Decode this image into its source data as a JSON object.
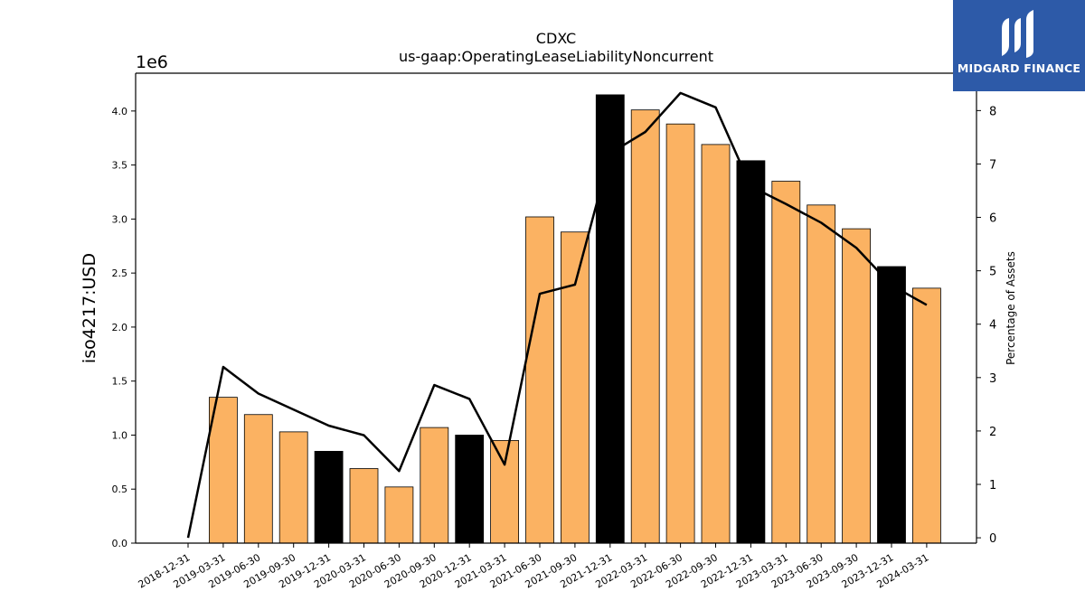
{
  "chart_data": {
    "type": "bar",
    "title": "CDXC",
    "subtitle": "us-gaap:OperatingLeaseLiabilityNoncurrent",
    "ylabel": "iso4217:USD",
    "y2label": "Percentage of Assets",
    "y_offset_label": "1e6",
    "ylim": [
      0,
      4.35
    ],
    "y2lim": [
      -0.1,
      8.7
    ],
    "y_ticks": [
      "0.0",
      "0.5",
      "1.0",
      "1.5",
      "2.0",
      "2.5",
      "3.0",
      "3.5",
      "4.0"
    ],
    "y2_ticks": [
      "0",
      "1",
      "2",
      "3",
      "4",
      "5",
      "6",
      "7",
      "8"
    ],
    "grid": false,
    "categories": [
      "2018-12-31",
      "2019-03-31",
      "2019-06-30",
      "2019-09-30",
      "2019-12-31",
      "2020-03-31",
      "2020-06-30",
      "2020-09-30",
      "2020-12-31",
      "2021-03-31",
      "2021-06-30",
      "2021-09-30",
      "2021-12-31",
      "2022-03-31",
      "2022-06-30",
      "2022-09-30",
      "2022-12-31",
      "2023-03-31",
      "2023-06-30",
      "2023-09-30",
      "2023-12-31",
      "2024-03-31"
    ],
    "series": [
      {
        "kind": "bar",
        "values": [
          null,
          1.35,
          1.19,
          1.03,
          0.85,
          0.69,
          0.52,
          1.07,
          1.0,
          0.95,
          3.02,
          2.88,
          4.15,
          4.01,
          3.88,
          3.69,
          3.54,
          3.35,
          3.13,
          2.91,
          2.56,
          2.36
        ],
        "colors": [
          "#fbb262",
          "#fbb262",
          "#fbb262",
          "#fbb262",
          "#000000",
          "#fbb262",
          "#fbb262",
          "#fbb262",
          "#000000",
          "#fbb262",
          "#fbb262",
          "#fbb262",
          "#000000",
          "#fbb262",
          "#fbb262",
          "#fbb262",
          "#000000",
          "#fbb262",
          "#fbb262",
          "#fbb262",
          "#000000",
          "#fbb262"
        ]
      },
      {
        "kind": "line",
        "axis": "y2",
        "color": "#000000",
        "values": [
          0.0,
          3.2,
          2.7,
          2.4,
          2.1,
          1.92,
          1.25,
          2.86,
          2.6,
          1.37,
          4.57,
          4.74,
          7.2,
          7.6,
          8.33,
          8.06,
          6.58,
          6.25,
          5.9,
          5.43,
          4.73,
          4.36
        ]
      }
    ]
  },
  "logo": {
    "text": "MIDGARD FINANCE",
    "color": "#2d5aa8"
  }
}
